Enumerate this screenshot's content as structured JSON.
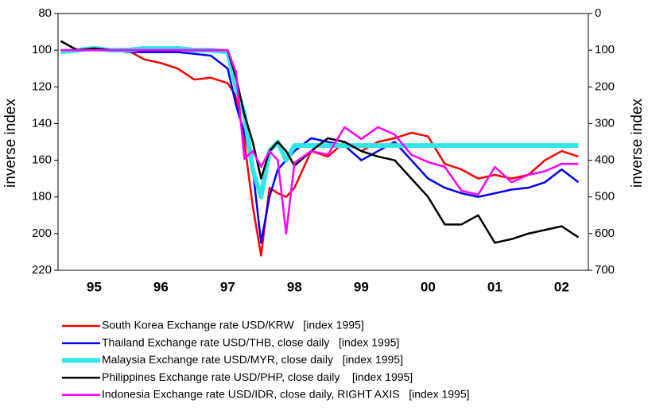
{
  "chart_data": {
    "type": "line",
    "x": [
      1995.0,
      1995.25,
      1995.5,
      1995.75,
      1996.0,
      1996.25,
      1996.5,
      1996.75,
      1997.0,
      1997.25,
      1997.5,
      1997.625,
      1997.75,
      1997.875,
      1998.0,
      1998.125,
      1998.25,
      1998.375,
      1998.5,
      1998.75,
      1999.0,
      1999.25,
      1999.5,
      1999.75,
      2000.0,
      2000.25,
      2000.5,
      2000.75,
      2001.0,
      2001.25,
      2001.5,
      2001.75,
      2002.0,
      2002.25,
      2002.5,
      2002.75
    ],
    "xlim": [
      1994.96,
      2002.9
    ],
    "xticks": [
      {
        "value": 1995.5,
        "label": "95"
      },
      {
        "value": 1996.5,
        "label": "96"
      },
      {
        "value": 1997.5,
        "label": "97"
      },
      {
        "value": 1998.5,
        "label": "98"
      },
      {
        "value": 1999.5,
        "label": "99"
      },
      {
        "value": 2000.5,
        "label": "00"
      },
      {
        "value": 2001.5,
        "label": "01"
      },
      {
        "value": 2002.5,
        "label": "02"
      }
    ],
    "y_label": "inverse index",
    "y2_label": "inverse index",
    "ylim": [
      80,
      220
    ],
    "yticks": [
      80,
      100,
      120,
      140,
      160,
      180,
      200,
      220
    ],
    "y2lim": [
      0,
      700
    ],
    "y2ticks": [
      0,
      100,
      200,
      300,
      400,
      500,
      600,
      700
    ],
    "inverted": true,
    "series": [
      {
        "name": "South Korea Exchange rate USD/KRW   [index 1995]",
        "color": "#ff0000",
        "linewidth": 2.5,
        "values": [
          100,
          100,
          100,
          100,
          100,
          105,
          107,
          110,
          116,
          115,
          118,
          125,
          150,
          185,
          212,
          175,
          178,
          180,
          175,
          155,
          158,
          150,
          155,
          150,
          148,
          145,
          147,
          162,
          165,
          170,
          168,
          170,
          168,
          160,
          155,
          158
        ]
      },
      {
        "name": "Thailand Exchange rate USD/THB, close daily   [index 1995]",
        "color": "#0000ff",
        "linewidth": 2.5,
        "values": [
          100,
          100,
          100,
          100,
          101,
          101,
          101,
          101,
          102,
          103,
          110,
          130,
          145,
          165,
          205,
          180,
          165,
          160,
          155,
          148,
          150,
          152,
          160,
          155,
          150,
          160,
          170,
          175,
          178,
          180,
          178,
          176,
          175,
          172,
          165,
          172
        ]
      },
      {
        "name": "Malaysia Exchange rate USD/MYR, close daily   [index 1995]",
        "color": "#33e6e6",
        "linewidth": 6,
        "values": [
          101,
          100,
          99,
          100,
          100,
          99,
          99,
          99,
          100,
          100,
          101,
          120,
          135,
          165,
          180,
          155,
          150,
          160,
          152,
          152,
          152,
          152,
          152,
          152,
          152,
          152,
          152,
          152,
          152,
          152,
          152,
          152,
          152,
          152,
          152,
          152
        ]
      },
      {
        "name": "Philippines Exchange rate USD/PHP, close daily    [index 1995]",
        "color": "#000000",
        "linewidth": 2.5,
        "values": [
          95,
          100,
          99,
          100,
          100,
          100,
          100,
          100,
          100,
          100,
          100,
          115,
          135,
          150,
          170,
          155,
          150,
          155,
          163,
          155,
          148,
          150,
          155,
          158,
          160,
          170,
          180,
          195,
          195,
          190,
          205,
          203,
          200,
          198,
          196,
          202
        ]
      },
      {
        "name": "Indonesia Exchange rate USD/IDR, close daily, RIGHT AXIS   [index 1995]",
        "color": "#ff00ff",
        "linewidth": 2.5,
        "axis": "y2",
        "values": [
          100,
          100,
          100,
          100,
          100,
          100,
          100,
          100,
          100,
          100,
          100,
          160,
          396,
          375,
          418,
          375,
          400,
          600,
          407,
          375,
          385,
          310,
          342,
          310,
          330,
          385,
          405,
          418,
          483,
          494,
          418,
          460,
          440,
          430,
          410,
          410
        ]
      }
    ]
  }
}
